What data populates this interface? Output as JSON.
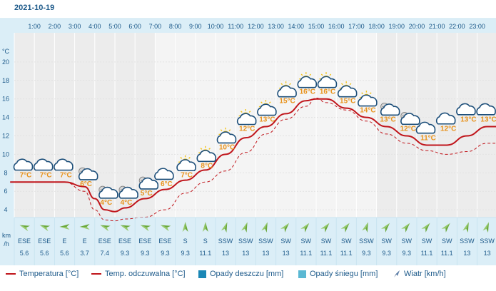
{
  "date": "2021-10-19",
  "units": {
    "temp": "°C",
    "wind_top": "km",
    "wind_bottom": "/h"
  },
  "legend": {
    "temp": "Temperatura [°C]",
    "feels": "Temp. odczuwalna [°C]",
    "rain": "Opady deszczu [mm]",
    "snow": "Opady śniegu [mm]",
    "wind": "Wiatr [km/h]"
  },
  "colors": {
    "temp": "#c0151b",
    "feels": "#c0151b",
    "rain": "#1b87b5",
    "snow": "#5bb8d3",
    "wind": "#1d3f6e",
    "label_temp": "#e8921b",
    "header": "#1d5a8a"
  },
  "chart_data": {
    "type": "line",
    "ylim": [
      2,
      22
    ],
    "yticks": [
      4,
      6,
      8,
      10,
      12,
      14,
      16,
      18,
      20
    ],
    "hours": [
      "1:00",
      "2:00",
      "3:00",
      "4:00",
      "5:00",
      "6:00",
      "7:00",
      "8:00",
      "9:00",
      "10:00",
      "11:00",
      "12:00",
      "13:00",
      "14:00",
      "15:00",
      "16:00",
      "17:00",
      "18:00",
      "19:00",
      "20:00",
      "21:00",
      "22:00",
      "23:00"
    ],
    "icons": [
      "cloud",
      "cloud",
      "cloud",
      "cloud-rain",
      "cloud-rain",
      "cloud-rain",
      "cloud-rain",
      "cloud",
      "sun-cloud",
      "sun-cloud",
      "sun-cloud",
      "sun-cloud",
      "sun-cloud",
      "sun-cloud",
      "sun-cloud",
      "sun-cloud",
      "sun-cloud",
      "sun-cloud",
      "cloud-rain",
      "cloud-rain",
      "cloud",
      "cloud",
      "cloud",
      "cloud"
    ],
    "temp_labels": [
      "7°C",
      "7°C",
      "7°C",
      "6°C",
      "4°C",
      "4°C",
      "5°C",
      "6°C",
      "7°C",
      "8°C",
      "10°C",
      "12°C",
      "13°C",
      "15°C",
      "16°C",
      "16°C",
      "15°C",
      "14°C",
      "13°C",
      "12°C",
      "11°C",
      "12°C",
      "13°C",
      "13°C"
    ],
    "temp_label_values": [
      7,
      7,
      7,
      6,
      4,
      4,
      5,
      6,
      7,
      8,
      10,
      12,
      13,
      15,
      16,
      16,
      15,
      14,
      13,
      12,
      11,
      12,
      13,
      13
    ],
    "temperature": {
      "x": [
        0,
        1,
        2,
        3,
        3.5,
        4,
        4.5,
        5,
        6,
        7,
        8,
        9,
        10,
        11,
        12,
        13,
        14,
        14.5,
        15,
        16,
        17,
        18,
        19,
        20,
        21,
        22,
        23,
        23.6
      ],
      "y": [
        7,
        7,
        7,
        6.5,
        5.2,
        4,
        3.8,
        4.2,
        5.2,
        6.2,
        7.2,
        8.3,
        10,
        11.8,
        13,
        14.4,
        15.8,
        16,
        16,
        15,
        14,
        13,
        12,
        11,
        11,
        12,
        13,
        13
      ]
    },
    "feels_like": {
      "x": [
        0,
        1,
        2,
        3,
        3.5,
        4,
        4.5,
        5,
        6,
        7,
        8,
        9,
        10,
        11,
        12,
        13,
        14,
        14.5,
        15,
        16,
        17,
        18,
        19,
        20,
        21,
        22,
        23,
        23.6
      ],
      "y": [
        7,
        7,
        7,
        6,
        4,
        2.9,
        2.8,
        3,
        3.2,
        4,
        5.8,
        7,
        8.2,
        10.2,
        12.2,
        13.8,
        15.2,
        16.1,
        15.6,
        14.8,
        13.6,
        12.2,
        11.2,
        10.4,
        10,
        10.3,
        11.2,
        11.2
      ]
    },
    "wind": {
      "directions": [
        "ESE",
        "ESE",
        "E",
        "E",
        "ESE",
        "ESE",
        "ESE",
        "ESE",
        "S",
        "S",
        "SSW",
        "SSW",
        "SSW",
        "SW",
        "SW",
        "SW",
        "SW",
        "SSW",
        "SW",
        "SW",
        "SW",
        "SW",
        "SSW",
        "SSW"
      ],
      "speeds": [
        "5.6",
        "5.6",
        "5.6",
        "3.7",
        "7.4",
        "9.3",
        "9.3",
        "9.3",
        "9.3",
        "11.1",
        "13",
        "13",
        "13",
        "13",
        "11.1",
        "11.1",
        "11.1",
        "9.3",
        "9.3",
        "9.3",
        "11.1",
        "11.1",
        "13",
        "13"
      ],
      "arrow_deg": [
        -70,
        -70,
        -90,
        -90,
        -70,
        -70,
        -70,
        -70,
        0,
        0,
        20,
        20,
        20,
        40,
        40,
        40,
        40,
        20,
        40,
        40,
        40,
        40,
        20,
        20
      ]
    }
  }
}
